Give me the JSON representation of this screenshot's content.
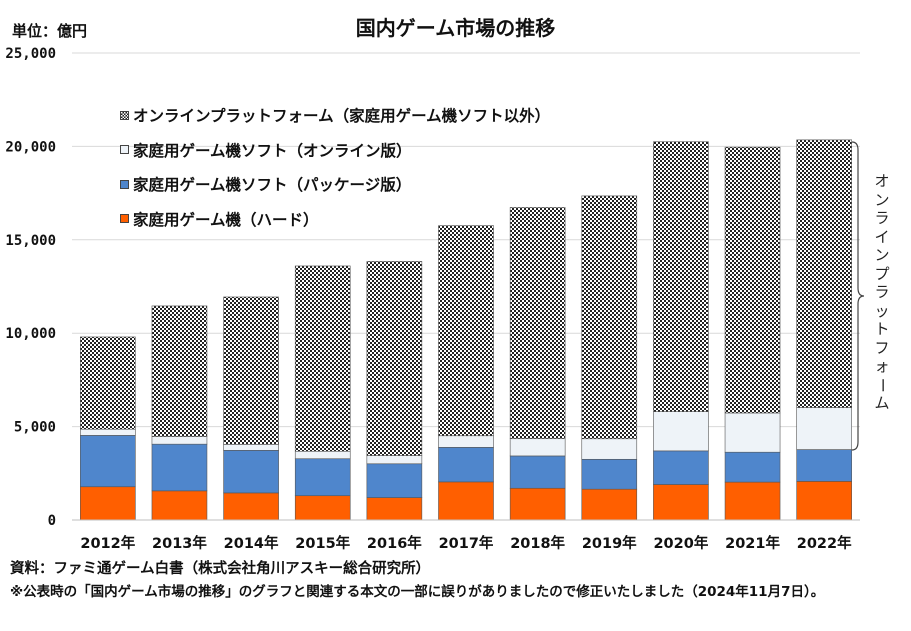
{
  "header": {
    "unit_label": "単位：億円",
    "title": "国内ゲーム市場の推移"
  },
  "footer": {
    "source": "資料：ファミ通ゲーム白書（株式会社角川アスキー総合研究所）",
    "note": "※公表時の「国内ゲーム市場の推移」のグラフと関連する本文の一部に誤りがありましたので修正いたしました（2024年11月7日）。"
  },
  "annotation": {
    "bracket_label": "オンラインプラットフォーム"
  },
  "chart_data": {
    "type": "bar",
    "stacked": true,
    "title": "国内ゲーム市場の推移",
    "ylabel": "単位：億円",
    "xlabel": "",
    "ylim": [
      0,
      25000
    ],
    "yticks": [
      0,
      5000,
      10000,
      15000,
      20000,
      25000
    ],
    "ytick_labels": [
      "0",
      "5,000",
      "10,000",
      "15,000",
      "20,000",
      "25,000"
    ],
    "grid": true,
    "legend_position": "top-left",
    "categories": [
      "2012年",
      "2013年",
      "2014年",
      "2015年",
      "2016年",
      "2017年",
      "2018年",
      "2019年",
      "2020年",
      "2021年",
      "2022年"
    ],
    "series": [
      {
        "name": "家庭用ゲーム機（ハード）",
        "color": "#ff5f00",
        "pattern": "solid",
        "values": [
          1780,
          1560,
          1450,
          1300,
          1200,
          2040,
          1700,
          1650,
          1900,
          2030,
          2070
        ]
      },
      {
        "name": "家庭用ゲーム機ソフト（パッケージ版）",
        "color": "#4f86cc",
        "pattern": "solid",
        "values": [
          2750,
          2500,
          2280,
          1980,
          1810,
          1850,
          1730,
          1600,
          1800,
          1600,
          1700
        ]
      },
      {
        "name": "家庭用ゲーム機ソフト（オンライン版）",
        "color": "#eef3f8",
        "pattern": "solid",
        "values": [
          330,
          410,
          320,
          400,
          440,
          620,
          930,
          1100,
          2100,
          2100,
          2250
        ]
      },
      {
        "name": "オンラインプラットフォーム（家庭用ゲーム機ソフト以外）",
        "color": "#333333",
        "pattern": "checker",
        "values": [
          4940,
          6990,
          7890,
          9920,
          10390,
          11250,
          12370,
          13000,
          14450,
          14230,
          14330
        ]
      }
    ]
  }
}
